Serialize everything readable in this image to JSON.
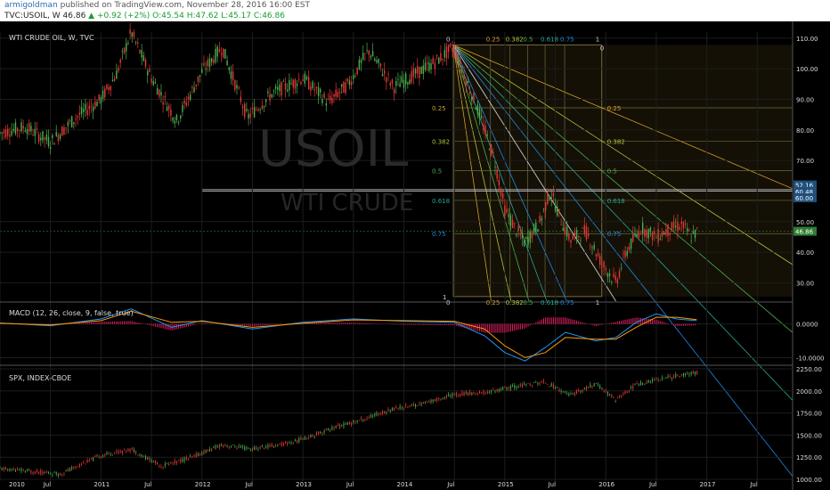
{
  "header": {
    "author": "armigoldman",
    "published_text": "published on TradingView.com, November 28, 2016 16:00 EST",
    "symbol": "TVC:USOIL, W",
    "last": "46.86",
    "change": "+0.92 (+2%)",
    "open": "O:45.54",
    "high": "H:47.62",
    "low": "L:45.17",
    "close": "C:46.86"
  },
  "colors": {
    "background": "#000000",
    "up_candle": "#4caf50",
    "down_candle": "#e53935",
    "macd_line": "#2196f3",
    "signal_line": "#ff9800",
    "histogram": "#e91e63",
    "price_label": "#2e7d32",
    "level_label": "#1f4f7a"
  },
  "panes": {
    "main_title": "WTI CRUDE OIL, W, TVC",
    "watermark_symbol": "USOIL",
    "watermark_name": "WTI CRUDE",
    "macd_title": "MACD (12, 26, close, 9, false, true)",
    "spx_title": "SPX, INDEX-CBOE"
  },
  "fib_levels_top": [
    "0",
    "0.25",
    "0.382",
    "0.5",
    "0.618",
    "0.75",
    "1",
    "0"
  ],
  "fib_levels_bottom": [
    "0",
    "0.25",
    "0.382",
    "0.5",
    "0.618",
    "0.75",
    "1"
  ],
  "fib_levels_left": [
    "0.25",
    "0.382",
    "0.5",
    "0.618",
    "0.75",
    "1"
  ],
  "fib_levels_right": [
    "0.25",
    "0.382",
    "0.5",
    "0.618",
    "0.75"
  ],
  "chart_data": [
    {
      "type": "candlestick",
      "title": "WTI CRUDE OIL, W, TVC",
      "x_axis": [
        "2010",
        "Jul",
        "2011",
        "Jul",
        "2012",
        "Jul",
        "2013",
        "Jul",
        "2014",
        "Jul",
        "2015",
        "Jul",
        "2016",
        "Jul",
        "2017",
        "Jul"
      ],
      "y_ticks": [
        "110.00",
        "100.00",
        "90.00",
        "80.00",
        "70.00",
        "50.00",
        "40.00",
        "30.00"
      ],
      "ylim": [
        24,
        112
      ],
      "price_labels": [
        "52.16",
        "60.48",
        "60.00",
        "46.86"
      ],
      "series": {
        "name": "USOIL",
        "x": [
          2010.0,
          2010.25,
          2010.5,
          2010.75,
          2011.0,
          2011.15,
          2011.3,
          2011.5,
          2011.75,
          2012.0,
          2012.2,
          2012.45,
          2012.7,
          2013.0,
          2013.25,
          2013.45,
          2013.65,
          2013.9,
          2014.1,
          2014.3,
          2014.49,
          2014.6,
          2014.75,
          2014.9,
          2015.0,
          2015.1,
          2015.2,
          2015.35,
          2015.45,
          2015.55,
          2015.65,
          2015.8,
          2015.95,
          2016.1,
          2016.2,
          2016.35,
          2016.5,
          2016.6,
          2016.75,
          2016.85,
          2016.91
        ],
        "y": [
          79,
          81,
          76,
          84,
          90,
          98,
          112,
          97,
          83,
          99,
          107,
          84,
          92,
          97,
          89,
          95,
          106,
          94,
          98,
          102,
          107,
          98,
          85,
          70,
          54,
          48,
          43,
          50,
          60,
          51,
          44,
          47,
          37,
          30,
          40,
          48,
          45,
          47,
          49,
          45,
          46.86
        ]
      }
    },
    {
      "type": "line",
      "title": "MACD (12, 26, close, 9, false, true)",
      "y_ticks": [
        "0.0000",
        "-10.0000"
      ],
      "ylim": [
        -12,
        6
      ],
      "x": [
        2010.0,
        2010.5,
        2011.0,
        2011.3,
        2011.7,
        2012.0,
        2012.5,
        2013.0,
        2013.5,
        2014.0,
        2014.5,
        2014.8,
        2015.0,
        2015.2,
        2015.4,
        2015.6,
        2015.9,
        2016.1,
        2016.3,
        2016.5,
        2016.7,
        2016.9
      ],
      "series": [
        {
          "name": "MACD",
          "values": [
            0.3,
            -0.5,
            1.5,
            4.5,
            -1.0,
            1.0,
            -1.5,
            0.5,
            1.5,
            0.8,
            0.5,
            -3.5,
            -8.5,
            -11.0,
            -7.0,
            -2.5,
            -5.0,
            -4.0,
            0.5,
            3.0,
            1.5,
            1.0
          ]
        },
        {
          "name": "Signal",
          "values": [
            0.2,
            -0.3,
            1.0,
            3.8,
            0.5,
            0.8,
            -1.0,
            0.2,
            1.2,
            1.0,
            0.8,
            -1.5,
            -6.5,
            -10.0,
            -8.5,
            -4.0,
            -4.5,
            -4.5,
            -1.0,
            2.0,
            2.0,
            1.3
          ]
        }
      ]
    },
    {
      "type": "candlestick",
      "title": "SPX, INDEX-CBOE",
      "y_ticks": [
        "2250.00",
        "2000.00",
        "1750.00",
        "1500.00",
        "1250.00",
        "1000.00"
      ],
      "ylim": [
        980,
        2270
      ],
      "series": {
        "name": "SPX",
        "x": [
          2010.0,
          2010.4,
          2010.6,
          2011.0,
          2011.3,
          2011.6,
          2011.9,
          2012.2,
          2012.5,
          2012.9,
          2013.3,
          2013.6,
          2013.9,
          2014.2,
          2014.5,
          2014.8,
          2015.1,
          2015.4,
          2015.65,
          2015.9,
          2016.1,
          2016.3,
          2016.5,
          2016.7,
          2016.91
        ],
        "y": [
          1120,
          1080,
          1060,
          1270,
          1340,
          1150,
          1250,
          1390,
          1340,
          1420,
          1580,
          1680,
          1800,
          1860,
          1960,
          1980,
          2050,
          2100,
          1950,
          2080,
          1900,
          2070,
          2130,
          2170,
          2210
        ]
      }
    }
  ]
}
